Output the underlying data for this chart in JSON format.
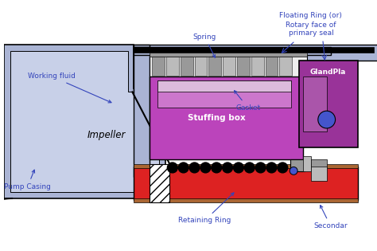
{
  "bg_color": "#ffffff",
  "pump_casing_color": "#aab4d4",
  "impeller_color": "#c8d0e8",
  "stuffing_box_color": "#bb44bb",
  "gland_plate_color": "#993399",
  "shaft_color": "#dd2222",
  "shaft_collar_top_color": "#aa6633",
  "shaft_collar_bot_color": "#aa6633",
  "spring_bg_color": "#eeeeee",
  "black_color": "#000000",
  "blue_circle_color": "#4455cc",
  "gray_color": "#999999",
  "gray_light_color": "#bbbbbb",
  "annotation_color": "#3344bb",
  "gasket_color": "#ddbbdd",
  "white": "#ffffff",
  "labels": {
    "working_fluid": "Working fluid",
    "pump_casing": "Pump Casing",
    "impeller": "Impeller",
    "spring": "Spring",
    "gasket": "Gasket",
    "stuffing_box": "Stuffing box",
    "gland_plate": "GlandPla",
    "floating_ring": "Floating Ring (or)",
    "rotary_face": "Rotary face of\nprimary seal",
    "retaining_ring": "Retaining Ring",
    "secondary": "Secondar"
  }
}
